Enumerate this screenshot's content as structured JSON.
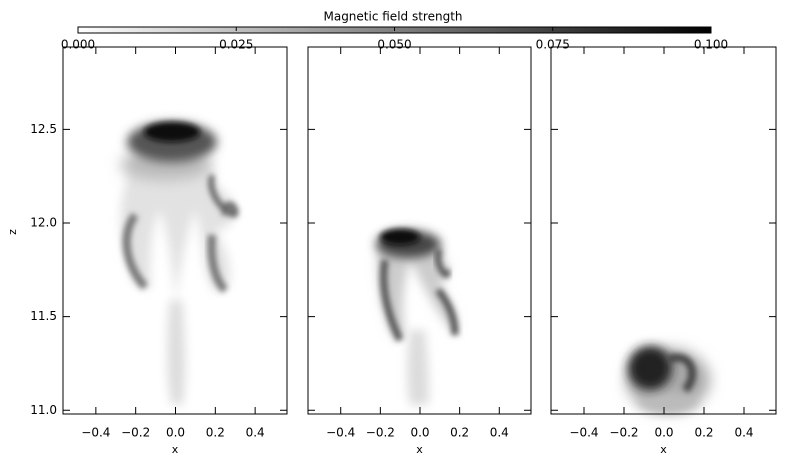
{
  "colorbar": {
    "title": "Magnetic field strength",
    "lim": [
      0,
      0.1
    ],
    "ticks": [
      {
        "value": 0,
        "label": "0.000"
      },
      0.025,
      {
        "value": 0.05,
        "label": "0.050"
      },
      0.075,
      {
        "value": 0.1,
        "label": "0.100"
      }
    ],
    "colormap": [
      "#ffffff",
      "#000000"
    ]
  },
  "chart_data": [
    {
      "type": "image",
      "xlabel": "x",
      "ylabel": "z",
      "xlim": [
        -0.565,
        0.56
      ],
      "ylim": [
        10.98,
        12.94
      ],
      "xticks": [
        {
          "value": -0.4,
          "label": "−0.4"
        },
        {
          "value": -0.2,
          "label": "−0.2"
        },
        {
          "value": 0,
          "label": "0.0"
        },
        0.2,
        0.4
      ],
      "yticks": [
        {
          "value": 11,
          "label": "11.0"
        },
        11.5,
        {
          "value": 12,
          "label": "12.0"
        },
        12.5
      ]
    },
    {
      "type": "image",
      "xlabel": "x",
      "xlim": [
        -0.565,
        0.56
      ],
      "ylim": [
        10.98,
        12.94
      ],
      "xticks": [
        {
          "value": -0.4,
          "label": "−0.4"
        },
        {
          "value": -0.2,
          "label": "−0.2"
        },
        {
          "value": 0,
          "label": "0.0"
        },
        0.2,
        0.4
      ]
    },
    {
      "type": "image",
      "xlabel": "x",
      "xlim": [
        -0.565,
        0.56
      ],
      "ylim": [
        10.98,
        12.94
      ],
      "xticks": [
        {
          "value": -0.4,
          "label": "−0.4"
        },
        {
          "value": -0.2,
          "label": "−0.2"
        },
        {
          "value": 0,
          "label": "0.0"
        },
        0.2,
        0.4
      ]
    }
  ]
}
